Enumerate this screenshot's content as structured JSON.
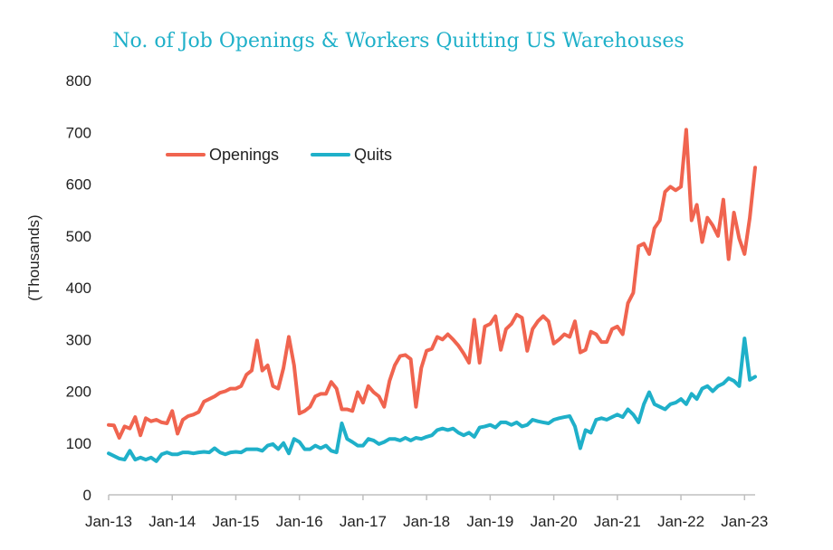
{
  "chart_data": {
    "type": "line",
    "title": "No. of Job Openings & Workers Quitting US Warehouses",
    "xlabel": "",
    "ylabel": "(Thousands)",
    "ylim": [
      0,
      800
    ],
    "yticks": [
      0,
      100,
      200,
      300,
      400,
      500,
      600,
      700,
      800
    ],
    "xticks": [
      "Jan-13",
      "Jan-14",
      "Jan-15",
      "Jan-16",
      "Jan-17",
      "Jan-18",
      "Jan-19",
      "Jan-20",
      "Jan-21",
      "Jan-22",
      "Jan-23"
    ],
    "x_start": "Jan-13",
    "x_end": "Feb-23",
    "grid": false,
    "legend": "top-left",
    "series": [
      {
        "name": "Openings",
        "color": "#f0644f",
        "values": [
          135,
          134,
          110,
          132,
          128,
          150,
          115,
          148,
          142,
          145,
          140,
          138,
          162,
          118,
          145,
          152,
          155,
          160,
          180,
          185,
          190,
          197,
          200,
          205,
          205,
          210,
          232,
          240,
          298,
          240,
          250,
          210,
          205,
          245,
          305,
          250,
          157,
          162,
          170,
          190,
          195,
          195,
          218,
          205,
          165,
          165,
          162,
          198,
          178,
          210,
          198,
          190,
          170,
          220,
          250,
          268,
          270,
          262,
          170,
          245,
          278,
          282,
          305,
          300,
          310,
          300,
          288,
          273,
          255,
          338,
          255,
          325,
          330,
          345,
          280,
          320,
          330,
          348,
          342,
          278,
          320,
          335,
          345,
          335,
          292,
          300,
          310,
          305,
          335,
          275,
          280,
          315,
          310,
          295,
          295,
          320,
          325,
          310,
          370,
          390,
          480,
          485,
          465,
          515,
          530,
          585,
          595,
          588,
          595,
          705,
          530,
          560,
          488,
          535,
          520,
          500,
          570,
          455,
          545,
          495,
          465,
          535,
          632
        ]
      },
      {
        "name": "Quits",
        "color": "#1fb0c9",
        "values": [
          80,
          75,
          70,
          68,
          85,
          68,
          72,
          68,
          72,
          65,
          78,
          82,
          78,
          78,
          82,
          82,
          80,
          82,
          83,
          82,
          90,
          82,
          78,
          82,
          83,
          82,
          88,
          88,
          88,
          85,
          95,
          98,
          88,
          100,
          80,
          108,
          102,
          88,
          88,
          95,
          90,
          95,
          85,
          82,
          138,
          108,
          102,
          95,
          95,
          108,
          105,
          98,
          102,
          108,
          108,
          105,
          110,
          105,
          110,
          108,
          112,
          115,
          125,
          128,
          125,
          128,
          120,
          115,
          120,
          112,
          130,
          132,
          135,
          130,
          140,
          140,
          135,
          140,
          132,
          135,
          145,
          142,
          140,
          138,
          145,
          148,
          150,
          152,
          132,
          90,
          125,
          120,
          145,
          148,
          145,
          150,
          155,
          150,
          165,
          155,
          140,
          175,
          198,
          175,
          170,
          165,
          175,
          178,
          185,
          175,
          195,
          185,
          205,
          210,
          200,
          210,
          215,
          225,
          220,
          210,
          302,
          222,
          228
        ]
      }
    ]
  }
}
